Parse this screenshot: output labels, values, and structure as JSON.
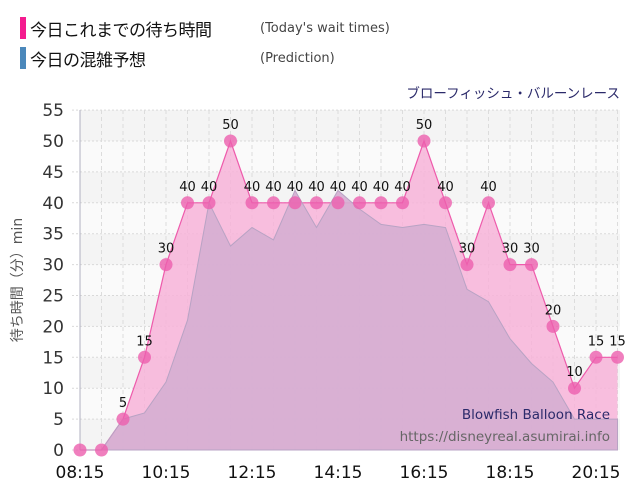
{
  "legend": {
    "actual": {
      "label_jp": "今日これまでの待ち時間",
      "label_en": "(Today's wait times)",
      "color": "#f41c8f"
    },
    "prediction": {
      "label_jp": "今日の混雑予想",
      "label_en": "(Prediction)",
      "color": "#4b88bb"
    }
  },
  "ride_name_jp": "ブローフィッシュ・バルーンレース",
  "watermark": {
    "ride_name_en": "Blowfish Balloon Race",
    "url": "https://disneyreal.asumirai.info"
  },
  "colors": {
    "actual_fill": "#f7b3d8",
    "actual_line": "#ee5aab",
    "actual_marker": "#ec5fae",
    "prediction_fill": "#d5aed2",
    "prediction_line": "#b8a3c4",
    "plot_bg_a": "#f4f4f4",
    "plot_bg_b": "#fafafa"
  },
  "chart_data": {
    "type": "area",
    "title": "ブローフィッシュ・バルーンレース",
    "xlabel": "",
    "ylabel": "待ち時間（分）min",
    "ylim": [
      0,
      55
    ],
    "yticks": [
      0,
      5,
      10,
      15,
      20,
      25,
      30,
      35,
      40,
      45,
      50,
      55
    ],
    "xtick_labels": [
      "08:15",
      "10:15",
      "12:15",
      "14:15",
      "16:15",
      "18:15",
      "20:15"
    ],
    "grid": true,
    "legend_position": "top-left",
    "x": [
      "08:15",
      "08:45",
      "09:15",
      "09:45",
      "10:15",
      "10:45",
      "11:15",
      "11:45",
      "12:15",
      "12:45",
      "13:15",
      "13:45",
      "14:15",
      "14:45",
      "15:15",
      "15:45",
      "16:15",
      "16:45",
      "17:15",
      "17:45",
      "18:15",
      "18:45",
      "19:15",
      "19:45",
      "20:15",
      "20:45"
    ],
    "series": [
      {
        "name": "今日これまでの待ち時間 (Today's wait times)",
        "values": [
          0,
          0,
          5,
          15,
          30,
          40,
          40,
          50,
          40,
          40,
          40,
          40,
          40,
          40,
          40,
          40,
          50,
          40,
          30,
          40,
          30,
          30,
          20,
          10,
          15,
          15
        ]
      },
      {
        "name": "今日の混雑予想 (Prediction)",
        "values": [
          0,
          0,
          5,
          6,
          11,
          21,
          40,
          33,
          36,
          34,
          42,
          36,
          42,
          39,
          36.5,
          36,
          36.5,
          36,
          26,
          24,
          18,
          14,
          11,
          5,
          5,
          5
        ]
      }
    ]
  }
}
